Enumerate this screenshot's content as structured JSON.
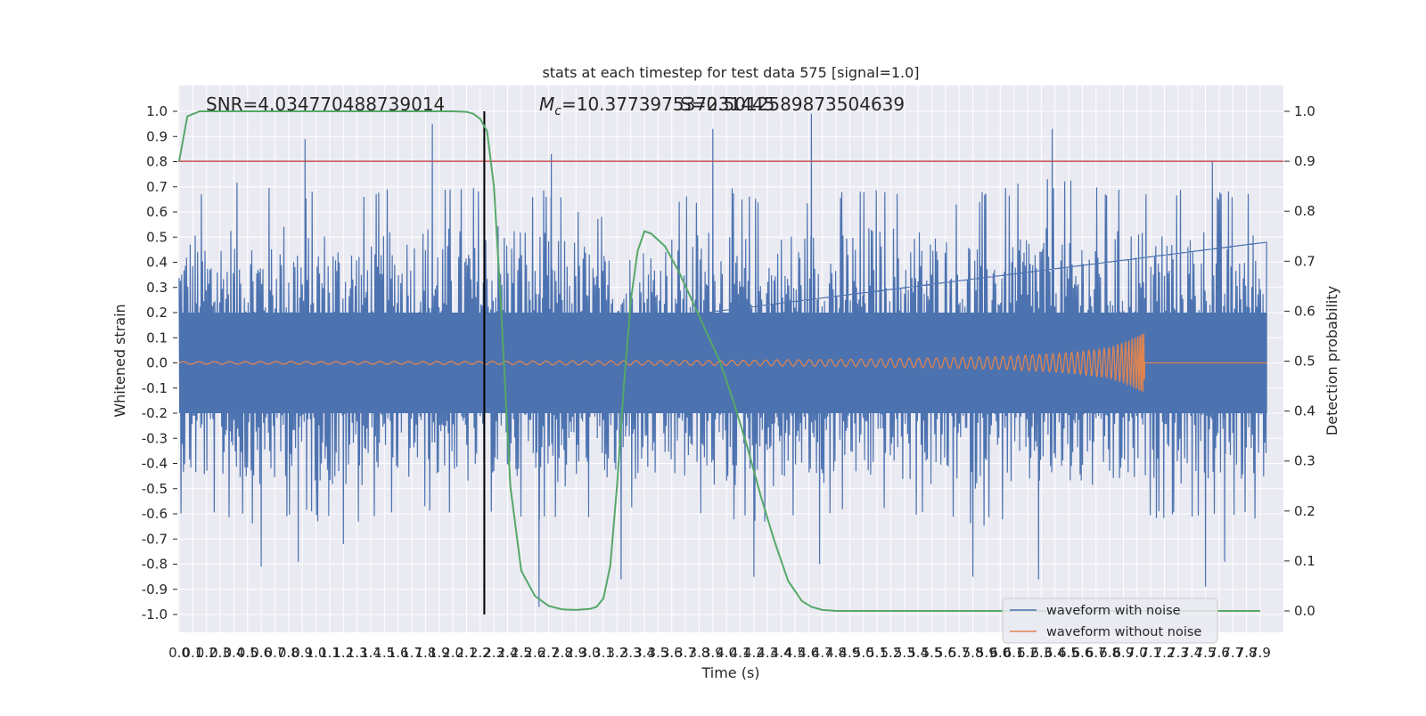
{
  "chart_data": {
    "type": "line",
    "title": "stats at each timestep for test data 575 [signal=1.0]",
    "xlabel": "Time (s)",
    "ylabel": "Whitened strain",
    "y2label": "Detection probability",
    "xlim": [
      0.0,
      7.95
    ],
    "ylim": [
      -1.08,
      1.1
    ],
    "y2lim": [
      -0.04,
      1.04
    ],
    "x_ticks": [
      "0.0",
      "0.1",
      "0.2",
      "0.3",
      "0.4",
      "0.5",
      "0.6",
      "0.7",
      "0.8",
      "0.9",
      "1.0",
      "1.1",
      "1.2",
      "1.3",
      "1.4",
      "1.5",
      "1.6",
      "1.7",
      "1.8",
      "1.9",
      "2.0",
      "2.1",
      "2.2",
      "2.3",
      "2.4",
      "2.5",
      "2.6",
      "2.7",
      "2.8",
      "2.9",
      "3.0",
      "3.1",
      "3.2",
      "3.3",
      "3.4",
      "3.5",
      "3.6",
      "3.7",
      "3.8",
      "3.9",
      "4.0",
      "4.1",
      "4.2",
      "4.3",
      "4.4",
      "4.5",
      "4.6",
      "4.7",
      "4.8",
      "4.9",
      "5.0",
      "5.1",
      "5.2",
      "5.3",
      "5.4",
      "5.5",
      "5.6",
      "5.7",
      "5.8",
      "5.9",
      "6.0",
      "6.1",
      "6.2",
      "6.3",
      "6.4",
      "6.5",
      "6.6",
      "6.7",
      "6.8",
      "6.9",
      "7.0",
      "7.1",
      "7.2",
      "7.3",
      "7.4",
      "7.5",
      "7.6",
      "7.7",
      "7.8",
      "7.9"
    ],
    "y_ticks": [
      "-1.0",
      "-0.9",
      "-0.8",
      "-0.7",
      "-0.6",
      "-0.5",
      "-0.4",
      "-0.3",
      "-0.2",
      "-0.1",
      "0.0",
      "0.1",
      "0.2",
      "0.3",
      "0.4",
      "0.5",
      "0.6",
      "0.7",
      "0.8",
      "0.9",
      "1.0"
    ],
    "y2_ticks": [
      "0.0",
      "0.1",
      "0.2",
      "0.3",
      "0.4",
      "0.5",
      "0.6",
      "0.7",
      "0.8",
      "0.9",
      "1.0"
    ],
    "annotations": {
      "snr": "SNR=4.034770488739014",
      "mc_prefix": "M",
      "mc_sub": "c",
      "mc_value": "=10.377397537231445",
      "overlap": "S=0.5012589873504639"
    },
    "threshold": {
      "axis": "y2",
      "value": 0.9,
      "color": "#c44e52"
    },
    "marker": {
      "x": 2.23,
      "color": "#000000"
    },
    "legend": {
      "location": "lower right"
    },
    "series": [
      {
        "name": "waveform with noise",
        "color": "#4c72b0",
        "axis": "y",
        "envelope_x": [
          0.0,
          0.4,
          0.8,
          1.2,
          1.6,
          2.0,
          2.4,
          2.8,
          3.2,
          3.6,
          4.0,
          4.4,
          4.8,
          5.2,
          5.6,
          6.0,
          6.4,
          6.8,
          7.2,
          7.6,
          7.95
        ],
        "envelope_upper": [
          0.55,
          0.6,
          0.6,
          0.55,
          0.58,
          0.6,
          0.62,
          0.55,
          0.45,
          0.55,
          0.58,
          0.55,
          0.58,
          0.6,
          0.55,
          0.58,
          0.62,
          0.58,
          0.6,
          0.58,
          0.6
        ],
        "envelope_lower": [
          -0.5,
          -0.55,
          -0.52,
          -0.55,
          -0.5,
          -0.52,
          -0.5,
          -0.55,
          -0.52,
          -0.5,
          -0.55,
          -0.55,
          -0.52,
          -0.5,
          -0.55,
          -0.55,
          -0.52,
          -0.55,
          -0.52,
          -0.55,
          -0.52
        ],
        "peaks": [
          {
            "x": 0.92,
            "y": 0.89
          },
          {
            "x": 1.85,
            "y": 0.95
          },
          {
            "x": 2.72,
            "y": 0.83
          },
          {
            "x": 3.9,
            "y": 0.93
          },
          {
            "x": 4.62,
            "y": 0.99
          },
          {
            "x": 6.38,
            "y": 0.93
          },
          {
            "x": 7.55,
            "y": 0.8
          },
          {
            "x": 0.6,
            "y": -0.81
          },
          {
            "x": 2.63,
            "y": -0.97
          },
          {
            "x": 3.23,
            "y": -0.86
          },
          {
            "x": 4.2,
            "y": -0.85
          },
          {
            "x": 4.68,
            "y": -0.8
          },
          {
            "x": 5.8,
            "y": -0.85
          },
          {
            "x": 6.28,
            "y": -0.86
          },
          {
            "x": 7.5,
            "y": -0.89
          },
          {
            "x": 7.64,
            "y": -0.79
          },
          {
            "x": 0.87,
            "y": -0.79
          },
          {
            "x": 1.2,
            "y": -0.72
          }
        ]
      },
      {
        "name": "waveform without noise",
        "color": "#dd8452",
        "axis": "y",
        "amplitude_x": [
          0.0,
          2.0,
          4.0,
          5.0,
          6.0,
          6.5,
          6.8,
          6.95,
          7.02,
          7.05,
          7.06,
          7.95
        ],
        "amplitude": [
          0.005,
          0.006,
          0.01,
          0.015,
          0.025,
          0.04,
          0.06,
          0.09,
          0.11,
          0.12,
          0.0,
          0.0
        ]
      },
      {
        "name": "detection probability",
        "color": "#55a868",
        "axis": "y2",
        "x": [
          0.0,
          0.06,
          0.15,
          0.3,
          0.6,
          1.0,
          1.4,
          1.8,
          2.0,
          2.1,
          2.15,
          2.2,
          2.25,
          2.3,
          2.35,
          2.42,
          2.5,
          2.6,
          2.7,
          2.8,
          2.9,
          3.0,
          3.05,
          3.1,
          3.15,
          3.2,
          3.25,
          3.3,
          3.35,
          3.4,
          3.45,
          3.55,
          3.65,
          3.75,
          3.85,
          3.95,
          4.05,
          4.15,
          4.25,
          4.35,
          4.45,
          4.55,
          4.62,
          4.7,
          4.8,
          5.0,
          5.5,
          6.0,
          6.5,
          7.0,
          7.5,
          7.9
        ],
        "y": [
          0.9,
          0.99,
          1.0,
          1.0,
          1.0,
          1.0,
          1.0,
          1.0,
          1.0,
          0.999,
          0.995,
          0.985,
          0.96,
          0.85,
          0.62,
          0.25,
          0.08,
          0.03,
          0.01,
          0.003,
          0.002,
          0.004,
          0.008,
          0.025,
          0.09,
          0.25,
          0.45,
          0.62,
          0.72,
          0.76,
          0.755,
          0.73,
          0.68,
          0.62,
          0.56,
          0.5,
          0.42,
          0.33,
          0.23,
          0.14,
          0.06,
          0.02,
          0.008,
          0.002,
          0.0,
          0.0,
          0.0,
          0.0,
          0.0,
          0.0,
          0.0,
          0.0
        ]
      }
    ]
  }
}
